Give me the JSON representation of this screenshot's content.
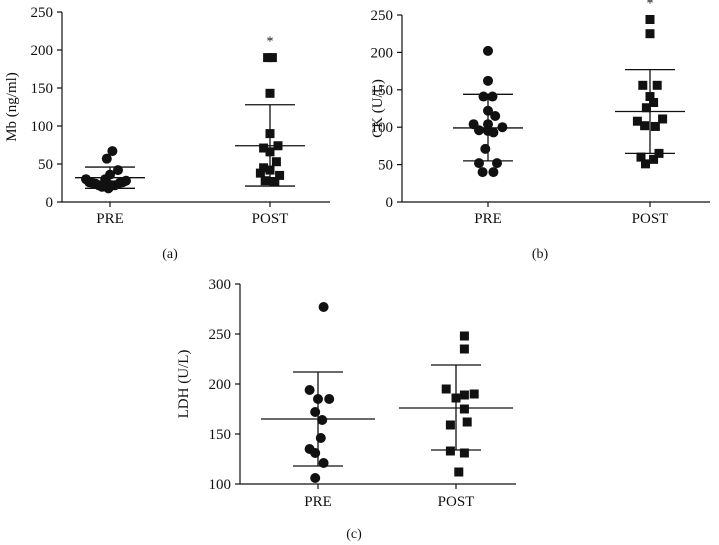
{
  "chart_data": [
    {
      "type": "scatter",
      "panel_label": "(a)",
      "ylabel": "Mb (ng/ml)",
      "xlabel": "",
      "ylim": [
        0,
        250
      ],
      "yticks": [
        0,
        50,
        100,
        150,
        200,
        250
      ],
      "categories": [
        "PRE",
        "POST"
      ],
      "series": [
        {
          "name": "PRE",
          "marker": "circle",
          "points": [
            {
              "offset": -3.0,
              "y": 30
            },
            {
              "offset": -2.6,
              "y": 26
            },
            {
              "offset": -2.2,
              "y": 25
            },
            {
              "offset": -1.8,
              "y": 24
            },
            {
              "offset": -1.4,
              "y": 22
            },
            {
              "offset": -1.0,
              "y": 20
            },
            {
              "offset": -0.6,
              "y": 30
            },
            {
              "offset": -0.4,
              "y": 57
            },
            {
              "offset": -0.2,
              "y": 18
            },
            {
              "offset": 0.0,
              "y": 36
            },
            {
              "offset": 0.2,
              "y": 22
            },
            {
              "offset": 0.3,
              "y": 67
            },
            {
              "offset": 0.6,
              "y": 22
            },
            {
              "offset": 1.0,
              "y": 42
            },
            {
              "offset": 1.2,
              "y": 25
            },
            {
              "offset": 1.6,
              "y": 26
            },
            {
              "offset": 2.0,
              "y": 28
            }
          ],
          "mean": 32,
          "sd_low": 18,
          "sd_high": 46
        },
        {
          "name": "POST",
          "marker": "square",
          "points": [
            {
              "offset": -0.3,
              "y": 190
            },
            {
              "offset": 0.3,
              "y": 190
            },
            {
              "offset": 0.0,
              "y": 143
            },
            {
              "offset": 0.0,
              "y": 90
            },
            {
              "offset": 1.0,
              "y": 74
            },
            {
              "offset": -0.8,
              "y": 71
            },
            {
              "offset": 0.0,
              "y": 66
            },
            {
              "offset": 0.8,
              "y": 53
            },
            {
              "offset": -0.8,
              "y": 45
            },
            {
              "offset": 0.0,
              "y": 42
            },
            {
              "offset": -1.2,
              "y": 38
            },
            {
              "offset": 1.2,
              "y": 35
            },
            {
              "offset": -0.6,
              "y": 28
            },
            {
              "offset": 0.6,
              "y": 27
            }
          ],
          "mean": 74,
          "sd_low": 21,
          "sd_high": 128,
          "annotation": "*"
        }
      ]
    },
    {
      "type": "scatter",
      "panel_label": "(b)",
      "ylabel": "CK (U/L)",
      "xlabel": "",
      "ylim": [
        0,
        250
      ],
      "yticks": [
        0,
        50,
        100,
        150,
        200,
        250
      ],
      "categories": [
        "PRE",
        "POST"
      ],
      "series": [
        {
          "name": "PRE",
          "marker": "circle",
          "points": [
            {
              "offset": 0.0,
              "y": 202
            },
            {
              "offset": 0.0,
              "y": 162
            },
            {
              "offset": -0.5,
              "y": 141
            },
            {
              "offset": 0.5,
              "y": 141
            },
            {
              "offset": 0.0,
              "y": 122
            },
            {
              "offset": 0.8,
              "y": 115
            },
            {
              "offset": -1.6,
              "y": 104
            },
            {
              "offset": 0.0,
              "y": 104
            },
            {
              "offset": 1.6,
              "y": 100
            },
            {
              "offset": -1.0,
              "y": 96
            },
            {
              "offset": 0.0,
              "y": 95
            },
            {
              "offset": 0.6,
              "y": 93
            },
            {
              "offset": -0.3,
              "y": 71
            },
            {
              "offset": -1.0,
              "y": 52
            },
            {
              "offset": 1.0,
              "y": 52
            },
            {
              "offset": -0.6,
              "y": 40
            },
            {
              "offset": 0.6,
              "y": 40
            }
          ],
          "mean": 99,
          "sd_low": 55,
          "sd_high": 144
        },
        {
          "name": "POST",
          "marker": "square",
          "points": [
            {
              "offset": 0.0,
              "y": 244
            },
            {
              "offset": 0.0,
              "y": 225
            },
            {
              "offset": -0.8,
              "y": 156
            },
            {
              "offset": 0.8,
              "y": 156
            },
            {
              "offset": 0.0,
              "y": 141
            },
            {
              "offset": 0.4,
              "y": 133
            },
            {
              "offset": -0.4,
              "y": 126
            },
            {
              "offset": 1.4,
              "y": 111
            },
            {
              "offset": -1.4,
              "y": 108
            },
            {
              "offset": -0.6,
              "y": 102
            },
            {
              "offset": 0.6,
              "y": 101
            },
            {
              "offset": 1.0,
              "y": 65
            },
            {
              "offset": -1.0,
              "y": 60
            },
            {
              "offset": 0.4,
              "y": 57
            },
            {
              "offset": -0.5,
              "y": 51
            }
          ],
          "mean": 121,
          "sd_low": 65,
          "sd_high": 177,
          "annotation": "*"
        }
      ]
    },
    {
      "type": "scatter",
      "panel_label": "(c)",
      "ylabel": "LDH (U/L)",
      "xlabel": "",
      "ylim": [
        100,
        300
      ],
      "yticks": [
        100,
        150,
        200,
        250,
        300
      ],
      "categories": [
        "PRE",
        "POST"
      ],
      "series": [
        {
          "name": "PRE",
          "marker": "circle",
          "points": [
            {
              "offset": 0.4,
              "y": 277
            },
            {
              "offset": -0.6,
              "y": 194
            },
            {
              "offset": 0.0,
              "y": 185
            },
            {
              "offset": 0.8,
              "y": 185
            },
            {
              "offset": -0.2,
              "y": 172
            },
            {
              "offset": 0.3,
              "y": 164
            },
            {
              "offset": 0.2,
              "y": 146
            },
            {
              "offset": -0.6,
              "y": 135
            },
            {
              "offset": -0.2,
              "y": 131
            },
            {
              "offset": 0.4,
              "y": 121
            },
            {
              "offset": -0.2,
              "y": 106
            }
          ],
          "mean": 165,
          "sd_low": 118,
          "sd_high": 212
        },
        {
          "name": "POST",
          "marker": "square",
          "points": [
            {
              "offset": 0.6,
              "y": 248
            },
            {
              "offset": 0.6,
              "y": 235
            },
            {
              "offset": -0.7,
              "y": 195
            },
            {
              "offset": 0.6,
              "y": 189
            },
            {
              "offset": 1.3,
              "y": 190
            },
            {
              "offset": 0.0,
              "y": 186
            },
            {
              "offset": 0.6,
              "y": 175
            },
            {
              "offset": -0.4,
              "y": 159
            },
            {
              "offset": 0.8,
              "y": 162
            },
            {
              "offset": -0.4,
              "y": 133
            },
            {
              "offset": 0.6,
              "y": 131
            },
            {
              "offset": 0.2,
              "y": 112
            }
          ],
          "mean": 176,
          "sd_low": 134,
          "sd_high": 219
        }
      ]
    }
  ]
}
